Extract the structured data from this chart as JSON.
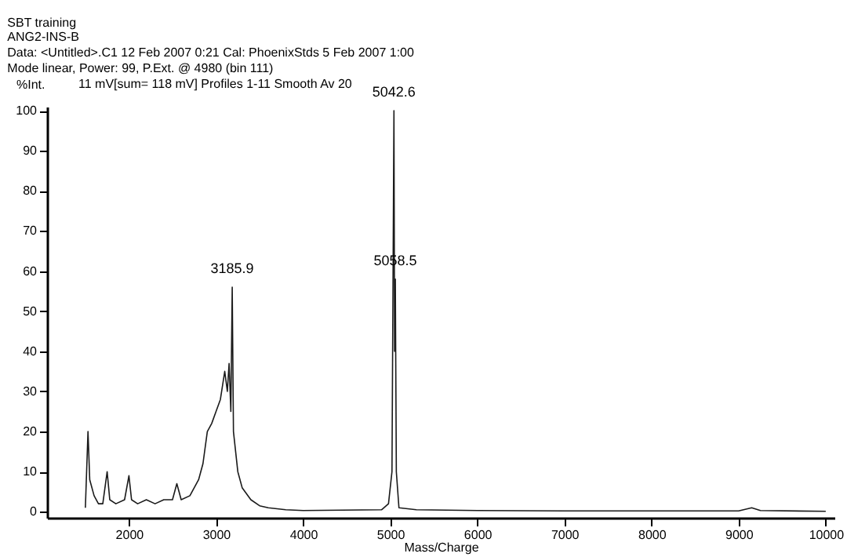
{
  "chart_data": {
    "type": "line",
    "title": "SBT training",
    "subtitle": "ANG2-INS-B",
    "annotations": [
      "Data: <Untitled>.C1 12 Feb 2007 0:21 Cal: PhoenixStds 5 Feb 2007 1:00",
      "Mode linear, Power: 99, P.Ext. @ 4980 (bin 111)",
      "11 mV[sum= 118 mV]  Profiles 1-11 Smooth Av 20",
      {
        "text": "3185.9",
        "x": 3185.9,
        "y": 56
      },
      {
        "text": "5042.6",
        "x": 5042.6,
        "y": 100
      },
      {
        "text": "5058.5",
        "x": 5058.5,
        "y": 58
      }
    ],
    "xlabel": "Mass/Charge",
    "ylabel": "%Int.",
    "xlim": [
      1060,
      10100
    ],
    "ylim": [
      -1.5,
      101
    ],
    "xticks": [
      2000,
      3000,
      4000,
      5000,
      6000,
      7000,
      8000,
      9000,
      10000
    ],
    "yticks": [
      0,
      10,
      20,
      30,
      40,
      50,
      60,
      70,
      80,
      90,
      100
    ],
    "grid": false,
    "series": [
      {
        "color": "#1a1a1a",
        "x": [
          1500,
          1530,
          1550,
          1600,
          1650,
          1700,
          1750,
          1780,
          1850,
          1950,
          2000,
          2030,
          2100,
          2200,
          2300,
          2400,
          2500,
          2550,
          2600,
          2700,
          2800,
          2850,
          2900,
          2950,
          3000,
          3050,
          3100,
          3130,
          3150,
          3170,
          3185.9,
          3200,
          3250,
          3300,
          3400,
          3500,
          3600,
          3800,
          4000,
          4900,
          4980,
          5020,
          5042.6,
          5050,
          5058.5,
          5070,
          5100,
          5300,
          6000,
          7000,
          9000,
          9150,
          9250,
          10000
        ],
        "values": [
          1,
          20,
          8,
          4,
          2,
          2,
          10,
          3,
          2,
          3,
          9,
          3,
          2,
          3,
          2,
          3,
          3,
          7,
          3,
          4,
          8,
          12,
          20,
          22,
          25,
          28,
          35,
          30,
          37,
          25,
          56,
          20,
          10,
          6,
          3,
          1.5,
          1,
          0.5,
          0.3,
          0.5,
          2,
          10,
          100,
          40,
          58,
          10,
          1,
          0.5,
          0.3,
          0.2,
          0.2,
          1,
          0.3,
          0.1
        ]
      }
    ]
  }
}
